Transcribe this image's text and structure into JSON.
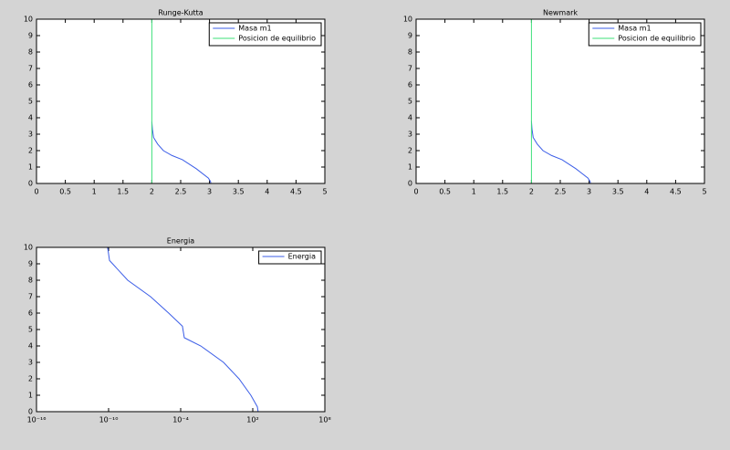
{
  "chart_data": [
    {
      "type": "line",
      "title": "Runge-Kutta",
      "xlim": [
        0,
        5
      ],
      "ylim": [
        0,
        10
      ],
      "xticks": [
        0,
        0.5,
        1,
        1.5,
        2,
        2.5,
        3,
        3.5,
        4,
        4.5,
        5
      ],
      "yticks": [
        0,
        1,
        2,
        3,
        4,
        5,
        6,
        7,
        8,
        9,
        10
      ],
      "legend": "upper right",
      "series": [
        {
          "name": "Masa m1",
          "color": "#3b5de7",
          "x": [
            2,
            2.01,
            2.03,
            2.1,
            2.2,
            2.35,
            2.53,
            2.77,
            2.98,
            3.02,
            3.02
          ],
          "values": [
            3.75,
            3.3,
            2.8,
            2.4,
            2.0,
            1.7,
            1.45,
            0.9,
            0.33,
            0.1,
            0
          ]
        },
        {
          "name": "Posicion de equilibrio",
          "color": "#3ee07a",
          "x": [
            2,
            2
          ],
          "values": [
            0,
            10
          ]
        }
      ]
    },
    {
      "type": "line",
      "title": "Newmark",
      "xlim": [
        0,
        5
      ],
      "ylim": [
        0,
        10
      ],
      "xticks": [
        0,
        0.5,
        1,
        1.5,
        2,
        2.5,
        3,
        3.5,
        4,
        4.5,
        5
      ],
      "yticks": [
        0,
        1,
        2,
        3,
        4,
        5,
        6,
        7,
        8,
        9,
        10
      ],
      "legend": "upper right",
      "series": [
        {
          "name": "Masa m1",
          "color": "#3b5de7",
          "x": [
            2,
            2.01,
            2.03,
            2.1,
            2.2,
            2.35,
            2.53,
            2.77,
            2.98,
            3.02,
            3.02
          ],
          "values": [
            3.8,
            3.3,
            2.8,
            2.4,
            2.0,
            1.7,
            1.45,
            0.9,
            0.33,
            0.1,
            0
          ]
        },
        {
          "name": "Posicion de equilibrio",
          "color": "#3ee07a",
          "x": [
            2,
            2
          ],
          "values": [
            0,
            10
          ]
        }
      ]
    },
    {
      "type": "line",
      "title": "Energia",
      "xscale": "log",
      "xlim": [
        1e-16,
        100000000.0
      ],
      "ylim": [
        0,
        10
      ],
      "xticks": [
        {
          "value": 1e-16,
          "label": "10⁻¹⁶"
        },
        {
          "value": 1e-10,
          "label": "10⁻¹⁰"
        },
        {
          "value": 0.0001,
          "label": "10⁻⁴"
        },
        {
          "value": 100,
          "label": "10²"
        },
        {
          "value": 100000000.0,
          "label": "10⁸"
        }
      ],
      "yticks": [
        0,
        1,
        2,
        3,
        4,
        5,
        6,
        7,
        8,
        9,
        10
      ],
      "legend": "upper right",
      "series": [
        {
          "name": "Energia",
          "color": "#3b5de7",
          "x": [
            8.3e-11,
            1.2e-10,
            3.9e-09,
            3.1e-07,
            1e-05,
            0.00014,
            0.0002,
            0.0047,
            0.37,
            7.2,
            69,
            240,
            280
          ],
          "values": [
            10,
            9.2,
            8,
            7,
            6,
            5.2,
            4.5,
            4,
            3,
            2,
            1,
            0.3,
            0
          ]
        }
      ]
    }
  ]
}
